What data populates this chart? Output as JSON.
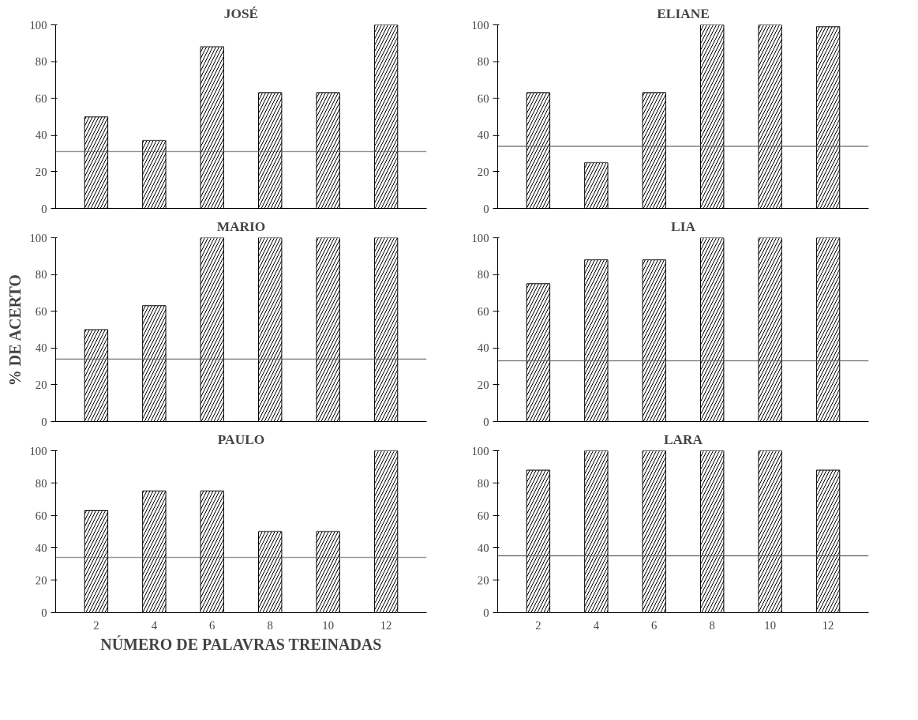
{
  "chart_data": [
    {
      "type": "bar",
      "title": "JOSÉ",
      "categories": [
        "2",
        "4",
        "6",
        "8",
        "10",
        "12"
      ],
      "series": [
        {
          "color": "#000000",
          "values": [
            50,
            37,
            88,
            63,
            63,
            100
          ]
        }
      ],
      "ylim": [
        0,
        100
      ],
      "yticks": [
        0,
        20,
        40,
        60,
        80,
        100
      ],
      "ref_lines": [
        {
          "axis": "y",
          "value": 31,
          "color": "#555555",
          "line_style": "solid"
        }
      ],
      "tick_labels": "y"
    },
    {
      "type": "bar",
      "title": "ELIANE",
      "categories": [
        "2",
        "4",
        "6",
        "8",
        "10",
        "12"
      ],
      "series": [
        {
          "color": "#000000",
          "values": [
            63,
            25,
            63,
            100,
            100,
            99
          ]
        }
      ],
      "ylim": [
        0,
        100
      ],
      "yticks": [
        0,
        20,
        40,
        60,
        80,
        100
      ],
      "ref_lines": [
        {
          "axis": "y",
          "value": 34,
          "color": "#555555",
          "line_style": "solid"
        }
      ],
      "tick_labels": "y"
    },
    {
      "type": "bar",
      "title": "MARIO",
      "ylabel": "% DE ACERTO",
      "categories": [
        "2",
        "4",
        "6",
        "8",
        "10",
        "12"
      ],
      "series": [
        {
          "color": "#000000",
          "values": [
            50,
            63,
            100,
            100,
            100,
            100
          ]
        }
      ],
      "ylim": [
        0,
        100
      ],
      "yticks": [
        0,
        20,
        40,
        60,
        80,
        100
      ],
      "ref_lines": [
        {
          "axis": "y",
          "value": 34,
          "color": "#555555",
          "line_style": "solid"
        }
      ],
      "tick_labels": "y"
    },
    {
      "type": "bar",
      "title": "LIA",
      "categories": [
        "2",
        "4",
        "6",
        "8",
        "10",
        "12"
      ],
      "series": [
        {
          "color": "#000000",
          "values": [
            75,
            88,
            88,
            100,
            100,
            100
          ]
        }
      ],
      "ylim": [
        0,
        100
      ],
      "yticks": [
        0,
        20,
        40,
        60,
        80,
        100
      ],
      "ref_lines": [
        {
          "axis": "y",
          "value": 33,
          "color": "#555555",
          "line_style": "solid"
        }
      ],
      "tick_labels": "y"
    },
    {
      "type": "bar",
      "title": "PAULO",
      "xlabel": "NÚMERO DE PALAVRAS TREINADAS",
      "categories": [
        "2",
        "4",
        "6",
        "8",
        "10",
        "12"
      ],
      "series": [
        {
          "color": "#000000",
          "values": [
            63,
            75,
            75,
            50,
            50,
            100
          ]
        }
      ],
      "ylim": [
        0,
        100
      ],
      "yticks": [
        0,
        20,
        40,
        60,
        80,
        100
      ],
      "ref_lines": [
        {
          "axis": "y",
          "value": 34,
          "color": "#555555",
          "line_style": "solid"
        }
      ]
    },
    {
      "type": "bar",
      "title": "LARA",
      "categories": [
        "2",
        "4",
        "6",
        "8",
        "10",
        "12"
      ],
      "series": [
        {
          "color": "#000000",
          "values": [
            88,
            100,
            100,
            100,
            100,
            88
          ]
        }
      ],
      "ylim": [
        0,
        100
      ],
      "yticks": [
        0,
        20,
        40,
        60,
        80,
        100
      ],
      "ref_lines": [
        {
          "axis": "y",
          "value": 35,
          "color": "#555555",
          "line_style": "solid"
        }
      ]
    }
  ]
}
